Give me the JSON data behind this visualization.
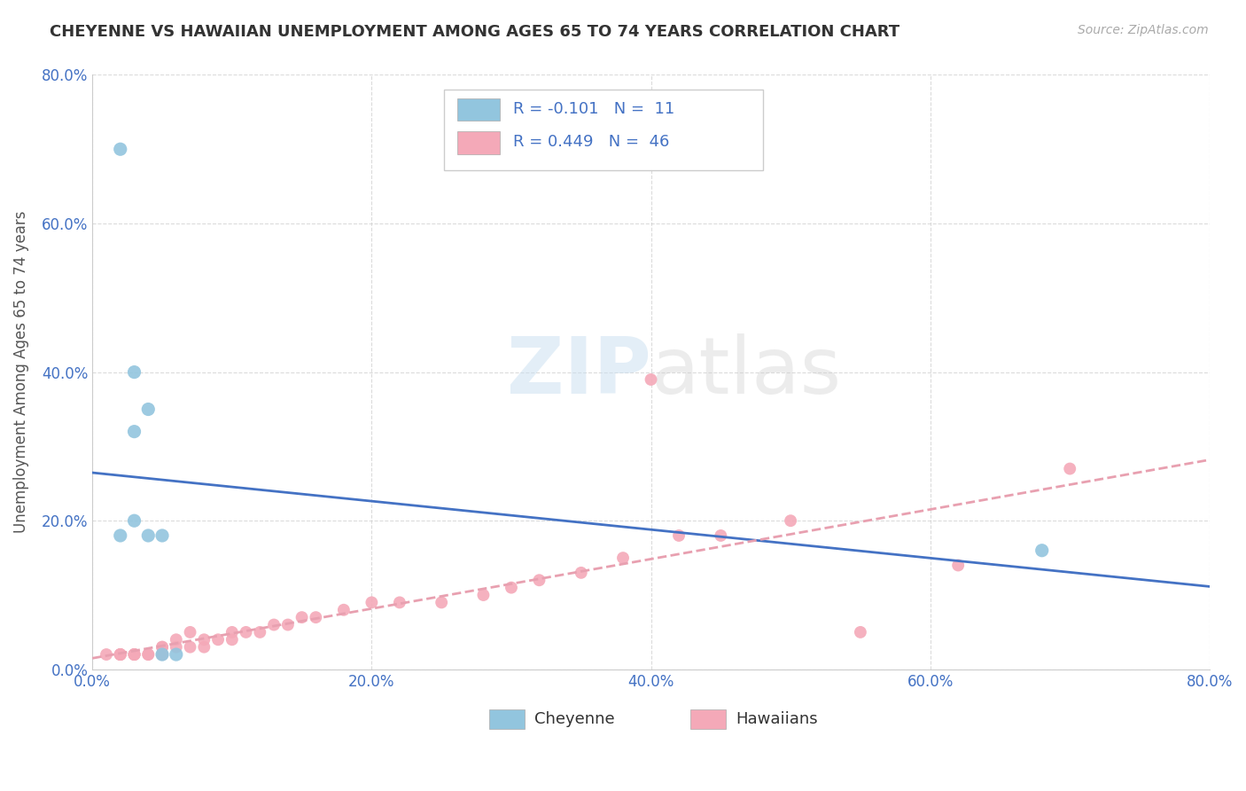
{
  "title": "CHEYENNE VS HAWAIIAN UNEMPLOYMENT AMONG AGES 65 TO 74 YEARS CORRELATION CHART",
  "source": "Source: ZipAtlas.com",
  "ylabel": "Unemployment Among Ages 65 to 74 years",
  "xlim": [
    0,
    0.8
  ],
  "ylim": [
    0,
    0.8
  ],
  "xticks": [
    0.0,
    0.2,
    0.4,
    0.6,
    0.8
  ],
  "yticks": [
    0.0,
    0.2,
    0.4,
    0.6,
    0.8
  ],
  "xtick_labels": [
    "0.0%",
    "20.0%",
    "40.0%",
    "60.0%",
    "80.0%"
  ],
  "ytick_labels": [
    "0.0%",
    "20.0%",
    "40.0%",
    "60.0%",
    "80.0%"
  ],
  "cheyenne_color": "#92c5de",
  "hawaiian_color": "#f4a9b8",
  "cheyenne_R": -0.101,
  "cheyenne_N": 11,
  "hawaiian_R": 0.449,
  "hawaiian_N": 46,
  "cheyenne_line_color": "#4472c4",
  "hawaiian_line_color": "#e8a0b0",
  "background_color": "#ffffff",
  "grid_color": "#cccccc",
  "watermark_zip": "ZIP",
  "watermark_atlas": "atlas",
  "legend_R_color": "#4472c4",
  "cheyenne_x": [
    0.02,
    0.03,
    0.03,
    0.04,
    0.04,
    0.05,
    0.05,
    0.06,
    0.02,
    0.03,
    0.68
  ],
  "cheyenne_y": [
    0.18,
    0.2,
    0.32,
    0.35,
    0.18,
    0.18,
    0.02,
    0.02,
    0.7,
    0.4,
    0.16
  ],
  "hawaiian_x": [
    0.01,
    0.02,
    0.02,
    0.02,
    0.02,
    0.03,
    0.03,
    0.03,
    0.03,
    0.04,
    0.04,
    0.05,
    0.05,
    0.05,
    0.05,
    0.06,
    0.06,
    0.07,
    0.07,
    0.08,
    0.08,
    0.09,
    0.1,
    0.1,
    0.11,
    0.12,
    0.13,
    0.14,
    0.15,
    0.16,
    0.18,
    0.2,
    0.22,
    0.25,
    0.28,
    0.3,
    0.32,
    0.35,
    0.38,
    0.4,
    0.42,
    0.45,
    0.5,
    0.55,
    0.62,
    0.7
  ],
  "hawaiian_y": [
    0.02,
    0.02,
    0.02,
    0.02,
    0.02,
    0.02,
    0.02,
    0.02,
    0.02,
    0.02,
    0.02,
    0.02,
    0.02,
    0.03,
    0.03,
    0.03,
    0.04,
    0.03,
    0.05,
    0.03,
    0.04,
    0.04,
    0.04,
    0.05,
    0.05,
    0.05,
    0.06,
    0.06,
    0.07,
    0.07,
    0.08,
    0.09,
    0.09,
    0.09,
    0.1,
    0.11,
    0.12,
    0.13,
    0.15,
    0.39,
    0.18,
    0.18,
    0.2,
    0.05,
    0.14,
    0.27
  ]
}
